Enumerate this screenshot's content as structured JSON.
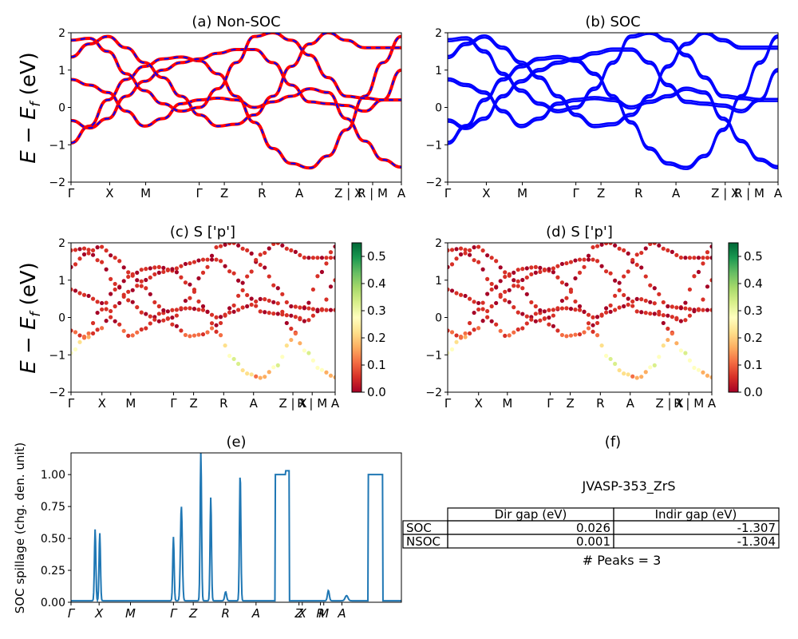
{
  "figure": {
    "ylabel_main": "E − E",
    "ylabel_sub": "f",
    "ylabel_unit": " (eV)"
  },
  "chart_data": [
    {
      "id": "a",
      "type": "line",
      "title": "(a) Non-SOC",
      "ylim": [
        -2,
        2
      ],
      "yticks": [
        "−2",
        "−1",
        "0",
        "1",
        "2"
      ],
      "xtick_labels": [
        "Γ",
        "X",
        "M",
        "Γ",
        "Z",
        "R",
        "A",
        "Z | X",
        "R | M",
        "A"
      ],
      "series_colors": {
        "non_soc": "#ff0000",
        "soc_overlay": "#0000ff"
      },
      "bands": [
        [
          -0.95,
          -0.5,
          0.2,
          0.75,
          1.1,
          1.3,
          1.35,
          1.25,
          0.9,
          0.3,
          -0.4,
          -1.1,
          -1.5,
          -1.62,
          -1.3,
          -0.6,
          0.3,
          1.2,
          1.9
        ],
        [
          -0.35,
          -0.55,
          -0.3,
          0.3,
          0.7,
          1.0,
          1.2,
          1.3,
          1.45,
          1.55,
          1.55,
          1.2,
          0.6,
          0.15,
          0.1,
          0.05,
          -0.1,
          0.2,
          1.0
        ],
        [
          0.75,
          0.6,
          0.4,
          -0.1,
          -0.5,
          -0.3,
          0.1,
          0.2,
          0.25,
          0.2,
          0.0,
          0.15,
          0.3,
          0.5,
          0.4,
          -0.3,
          -0.9,
          -1.4,
          -1.6
        ],
        [
          1.35,
          1.7,
          1.9,
          1.6,
          1.2,
          0.8,
          0.3,
          -0.2,
          -0.5,
          -0.45,
          -0.2,
          0.3,
          1.1,
          1.7,
          2.0,
          1.8,
          1.6,
          1.6,
          1.6
        ],
        [
          1.8,
          1.85,
          1.5,
          0.9,
          0.45,
          0.1,
          -0.1,
          0.0,
          0.5,
          1.2,
          1.9,
          2.0,
          1.8,
          1.4,
          0.8,
          0.3,
          0.25,
          0.2,
          0.2
        ]
      ]
    },
    {
      "id": "b",
      "type": "line",
      "title": "(b) SOC",
      "ylim": [
        -2,
        2
      ],
      "yticks": [
        "−2",
        "−1",
        "0",
        "1",
        "2"
      ],
      "xtick_labels": [
        "Γ",
        "X",
        "M",
        "Γ",
        "Z",
        "R",
        "A",
        "Z | X",
        "R | M",
        "A"
      ],
      "series_colors": {
        "soc": "#0000ff"
      }
    },
    {
      "id": "c",
      "type": "scatter",
      "title": "(c)  S ['p']",
      "ylim": [
        -2,
        2
      ],
      "yticks": [
        "−2",
        "−1",
        "0",
        "1",
        "2"
      ],
      "xtick_labels": [
        "Γ",
        "X",
        "M",
        "Γ",
        "Z",
        "R",
        "A",
        "Z | X",
        "R | M",
        "A"
      ],
      "colorbar": {
        "min": 0.0,
        "max": 0.55,
        "ticks": [
          "0.0",
          "0.1",
          "0.2",
          "0.3",
          "0.4",
          "0.5"
        ],
        "cmap": "RdYlGn"
      }
    },
    {
      "id": "d",
      "type": "scatter",
      "title": "(d) S ['p']",
      "ylim": [
        -2,
        2
      ],
      "yticks": [
        "−2",
        "−1",
        "0",
        "1",
        "2"
      ],
      "xtick_labels": [
        "Γ",
        "X",
        "M",
        "Γ",
        "Z",
        "R",
        "A",
        "Z | X",
        "R | M",
        "A"
      ],
      "colorbar": {
        "min": 0.0,
        "max": 0.55,
        "ticks": [
          "0.0",
          "0.1",
          "0.2",
          "0.3",
          "0.4",
          "0.5"
        ],
        "cmap": "RdYlGn"
      }
    },
    {
      "id": "e",
      "type": "line",
      "title": "(e)",
      "ylabel": "SOC spillage (chg. den. unit)",
      "ylim": [
        0,
        1.17
      ],
      "yticks": [
        "0.00",
        "0.25",
        "0.50",
        "0.75",
        "1.00"
      ],
      "ytick_values": [
        0,
        0.25,
        0.5,
        0.75,
        1.0
      ],
      "xtick_labels": [
        "Γ",
        "X",
        "M",
        "Γ",
        "Z",
        "R",
        "A",
        "Z",
        "X",
        "R",
        "M",
        "A"
      ],
      "line_color": "#1f77b4",
      "peaks": [
        {
          "x": 0.073,
          "h": 0.56,
          "w": 0.003
        },
        {
          "x": 0.087,
          "h": 0.53,
          "w": 0.003
        },
        {
          "x": 0.31,
          "h": 0.5,
          "w": 0.003
        },
        {
          "x": 0.334,
          "h": 0.74,
          "w": 0.004
        },
        {
          "x": 0.393,
          "h": 1.17,
          "w": 0.003
        },
        {
          "x": 0.423,
          "h": 0.81,
          "w": 0.003
        },
        {
          "x": 0.468,
          "h": 0.07,
          "w": 0.004
        },
        {
          "x": 0.512,
          "h": 1.0,
          "w": 0.003
        },
        {
          "x": 0.779,
          "h": 0.08,
          "w": 0.004
        },
        {
          "x": 0.834,
          "h": 0.04,
          "w": 0.006
        }
      ],
      "plateaus": [
        {
          "x0": 0.618,
          "x1": 0.65,
          "h": 1.0
        },
        {
          "x0": 0.65,
          "x1": 0.66,
          "h": 1.03
        },
        {
          "x0": 0.9,
          "x1": 0.944,
          "h": 1.0
        }
      ]
    }
  ],
  "panel_f": {
    "title": "(f)",
    "material": "JVASP-353_ZrS",
    "table": {
      "col_headers": [
        "Dir gap (eV)",
        "Indir gap (eV)"
      ],
      "rows": [
        {
          "label": "SOC",
          "dir": "0.026",
          "indir": "-1.307"
        },
        {
          "label": "NSOC",
          "dir": "0.001",
          "indir": "-1.304"
        }
      ]
    },
    "peaks_text": "# Peaks = 3"
  }
}
